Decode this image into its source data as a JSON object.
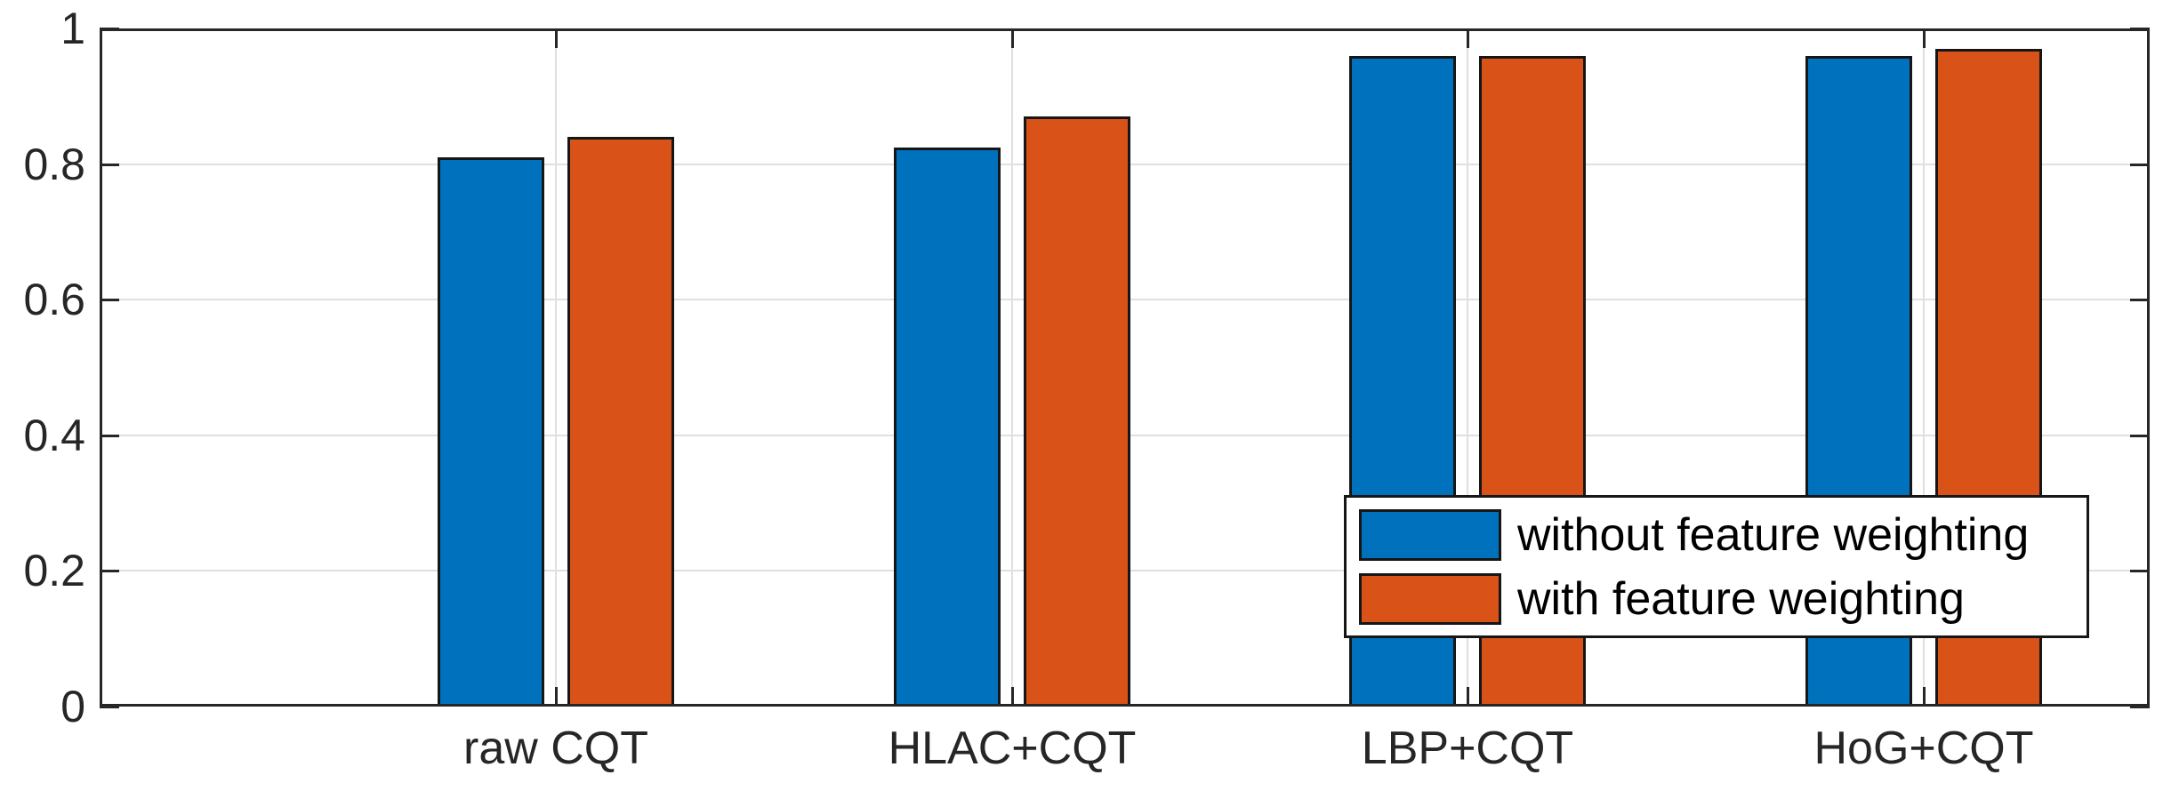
{
  "chart_data": {
    "type": "bar",
    "title": "",
    "xlabel": "",
    "ylabel": "",
    "categories": [
      "raw CQT",
      "HLAC+CQT",
      "LBP+CQT",
      "HoG+CQT"
    ],
    "series": [
      {
        "name": "without feature weighting",
        "color": "#0072BD",
        "values": [
          0.81,
          0.825,
          0.96,
          0.96
        ]
      },
      {
        "name": "with feature weighting",
        "color": "#D95319",
        "values": [
          0.84,
          0.87,
          0.96,
          0.97
        ]
      }
    ],
    "ylim": [
      0,
      1
    ],
    "yticks": [
      0,
      0.2,
      0.4,
      0.6,
      0.8,
      1
    ],
    "ytick_labels": [
      "0",
      "0.2",
      "0.4",
      "0.6",
      "0.8",
      "1"
    ],
    "grid": true,
    "legend": {
      "position": "lower-right-inside",
      "entries": [
        "without feature weighting",
        "with feature weighting"
      ]
    },
    "colors": {
      "bar_edge": "#161616",
      "axis": "#262626",
      "grid": "#e0e0e0",
      "tick_label": "#262626",
      "legend_border": "#161616",
      "background": "#ffffff"
    }
  }
}
